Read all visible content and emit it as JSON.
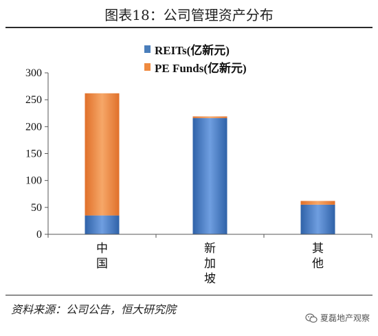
{
  "title": "图表18：公司管理资产分布",
  "chart_data": {
    "type": "bar",
    "stacked": true,
    "categories": [
      "中\n国",
      "新\n加\n坡",
      "其\n他"
    ],
    "series": [
      {
        "name": "REITs(亿新元)",
        "values": [
          35,
          216,
          55
        ],
        "color": "#4a7ebb"
      },
      {
        "name": "PE Funds(亿新元)",
        "values": [
          227,
          3,
          7
        ],
        "color": "#ef8a3f"
      }
    ],
    "ylim": [
      0,
      300
    ],
    "yticks": [
      0,
      50,
      100,
      150,
      200,
      250,
      300
    ],
    "grid": false,
    "legend_position": "top-center"
  },
  "source": "资料来源：公司公告，恒大研究院",
  "watermark": "夏磊地产观察"
}
